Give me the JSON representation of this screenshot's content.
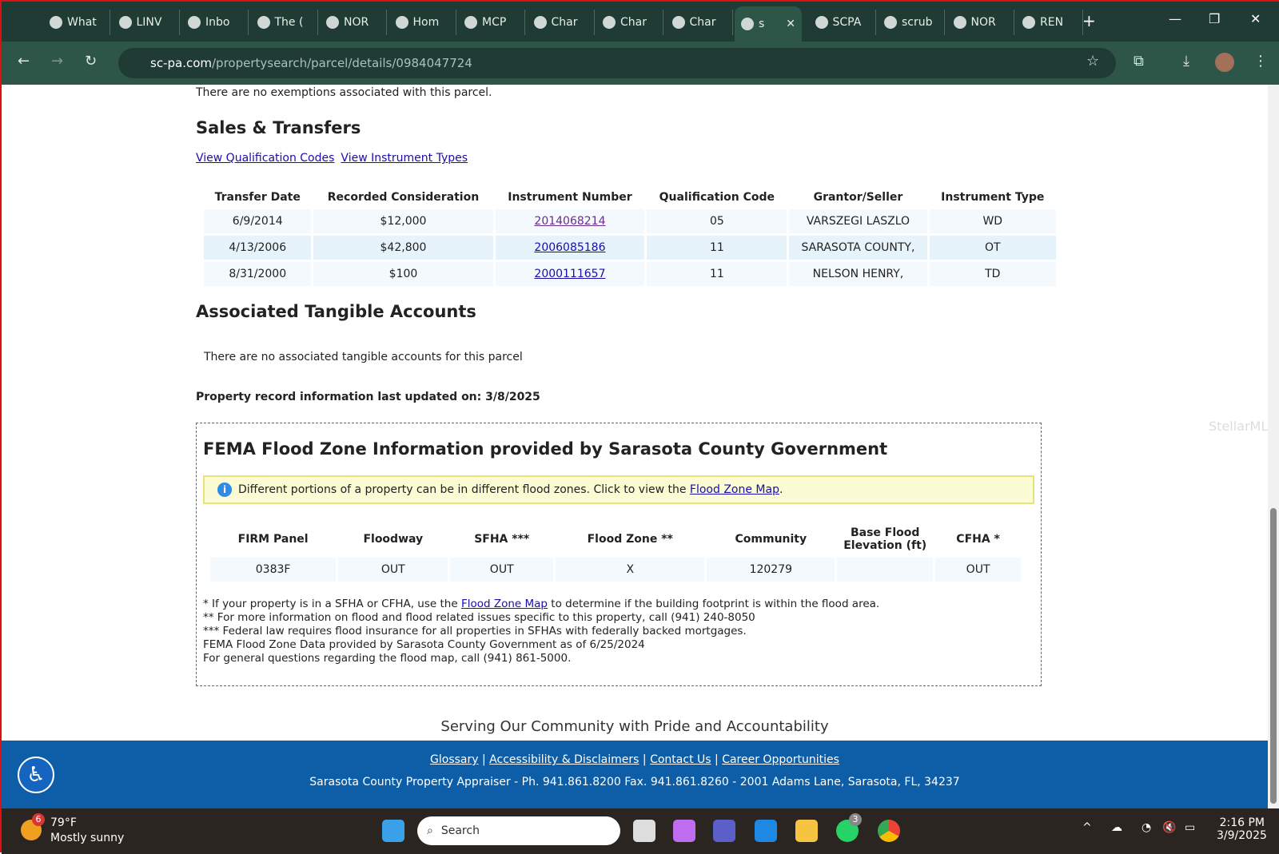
{
  "browser": {
    "tabs": [
      "What",
      "LINV",
      "Inbo",
      "The (",
      "NOR",
      "Hom",
      "MCP",
      "Char",
      "Char",
      "Char",
      "s",
      "SCPA",
      "scrub",
      "NOR",
      "REN"
    ],
    "url_host": "sc-pa.com",
    "url_path": "/propertysearch/parcel/details/0984047724"
  },
  "page": {
    "exemptions": "There are no exemptions associated with this parcel.",
    "sales_title": "Sales & Transfers",
    "links": [
      "View Qualification Codes",
      "View Instrument Types"
    ],
    "sales_headers": [
      "Transfer Date",
      "Recorded Consideration",
      "Instrument Number",
      "Qualification Code",
      "Grantor/Seller",
      "Instrument Type"
    ],
    "sales_rows": [
      [
        "6/9/2014",
        "$12,000",
        "2014068214",
        "05",
        "VARSZEGI LASZLO",
        "WD"
      ],
      [
        "4/13/2006",
        "$42,800",
        "2006085186",
        "11",
        "SARASOTA COUNTY,",
        "OT"
      ],
      [
        "8/31/2000",
        "$100",
        "2000111657",
        "11",
        "NELSON HENRY,",
        "TD"
      ]
    ],
    "tangible_title": "Associated Tangible Accounts",
    "tangible_text": "There are no associated tangible accounts for this parcel",
    "last_updated": "Property record information last updated on: 3/8/2025",
    "fema": {
      "title": "FEMA Flood Zone Information provided by Sarasota County Government",
      "note": "Different portions of a property can be in different flood zones. Click to view the ",
      "note_link": "Flood Zone Map",
      "headers": [
        "FIRM Panel",
        "Floodway",
        "SFHA ***",
        "Flood Zone **",
        "Community",
        "Base Flood Elevation (ft)",
        "CFHA *"
      ],
      "row": [
        "0383F",
        "OUT",
        "OUT",
        "X",
        "120279",
        "",
        "OUT"
      ],
      "fn1_pre": "* If your property is in a SFHA or CFHA, use the ",
      "fn1_link": "Flood Zone Map",
      "fn1_post": " to determine if the building footprint is within the flood area.",
      "fn2": "** For more information on flood and flood related issues specific to this property, call (941) 240-8050",
      "fn3": "*** Federal law requires flood insurance for all properties in SFHAs with federally backed mortgages.",
      "fn4": "FEMA Flood Zone Data provided by Sarasota County Government as of 6/25/2024",
      "fn5": "For general questions regarding the flood map, call (941) 861-5000."
    },
    "tagline": "Serving Our Community with Pride and Accountability",
    "watermark": "StellarMLS"
  },
  "footer": {
    "links": [
      "Glossary",
      "Accessibility & Disclaimers",
      "Contact Us",
      "Career Opportunities"
    ],
    "address": "Sarasota County Property Appraiser - Ph. 941.861.8200 Fax. 941.861.8260 - 2001 Adams Lane, Sarasota, FL, 34237"
  },
  "taskbar": {
    "temp": "79°F",
    "weather": "Mostly sunny",
    "weather_badge": "6",
    "search": "Search",
    "whatsapp_badge": "3",
    "time": "2:16 PM",
    "date": "3/9/2025"
  }
}
